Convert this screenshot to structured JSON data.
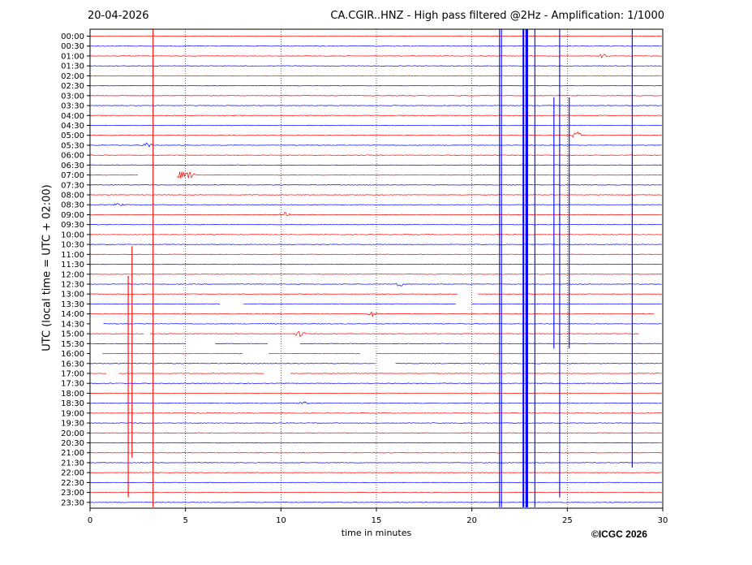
{
  "header": {
    "date": "20-04-2026",
    "title": "CA.CGIR..HNZ - High pass filtered @2Hz - Amplification: 1/1000"
  },
  "footer": {
    "copyright": "©ICGC 2026"
  },
  "chart_data": {
    "type": "line",
    "title": "CA.CGIR..HNZ - High pass filtered @2Hz - Amplification: 1/1000",
    "xlabel": "time in minutes",
    "ylabel": "UTC (local time = UTC + 02:00)",
    "xlim": [
      0,
      30
    ],
    "x_ticks": [
      0,
      5,
      10,
      15,
      20,
      25,
      30
    ],
    "grid": "vertical dotted",
    "trace_colors": [
      "#ff0000",
      "#0000ff"
    ],
    "rows": [
      "00:00",
      "00:30",
      "01:00",
      "01:30",
      "02:00",
      "02:30",
      "03:00",
      "03:30",
      "04:00",
      "04:30",
      "05:00",
      "05:30",
      "06:00",
      "06:30",
      "07:00",
      "07:30",
      "08:00",
      "08:30",
      "09:00",
      "09:30",
      "10:00",
      "10:30",
      "11:00",
      "11:30",
      "12:00",
      "12:30",
      "13:00",
      "13:30",
      "14:00",
      "14:30",
      "15:00",
      "15:30",
      "16:00",
      "16:30",
      "17:00",
      "17:30",
      "18:00",
      "18:30",
      "19:00",
      "19:30",
      "20:00",
      "20:30",
      "21:00",
      "21:30",
      "22:00",
      "22:30",
      "23:00",
      "23:30"
    ],
    "events": [
      {
        "minute": 3.3,
        "color": "#ff0000",
        "from_row": 0,
        "to_row": 47
      },
      {
        "minute": 21.45,
        "color": "#0000ff",
        "from_row": 0,
        "to_row": 47
      },
      {
        "minute": 21.55,
        "color": "#0000ff",
        "from_row": 0,
        "to_row": 47
      },
      {
        "minute": 22.7,
        "color": "#0000ff",
        "from_row": 0,
        "to_row": 47
      },
      {
        "minute": 22.85,
        "color": "#0000ff",
        "from_row": 0,
        "to_row": 47
      },
      {
        "minute": 22.9,
        "color": "#0000ff",
        "from_row": 0,
        "to_row": 47
      },
      {
        "minute": 23.3,
        "color": "#0000ff",
        "from_row": 0,
        "to_row": 47
      },
      {
        "minute": 24.6,
        "color": "#0000ff",
        "from_row": 0,
        "to_row": 46
      },
      {
        "minute": 28.4,
        "color": "#0000ff",
        "from_row": 0,
        "to_row": 43
      },
      {
        "minute": 24.3,
        "color": "#0000ff",
        "from_row": 7,
        "to_row": 31
      },
      {
        "minute": 25.1,
        "color": "#0000ff",
        "from_row": 7,
        "to_row": 31
      },
      {
        "minute": 2.0,
        "color": "#ff0000",
        "from_row": 25,
        "to_row": 46
      },
      {
        "minute": 2.2,
        "color": "#ff0000",
        "from_row": 22,
        "to_row": 42
      }
    ],
    "bursts": [
      {
        "row": 2,
        "minute": 26.9,
        "amp": 3
      },
      {
        "row": 10,
        "minute": 25.5,
        "amp": 5
      },
      {
        "row": 11,
        "minute": 3.0,
        "amp": 3
      },
      {
        "row": 14,
        "minute": 4.7,
        "amp": 6
      },
      {
        "row": 14,
        "minute": 5.2,
        "amp": 5
      },
      {
        "row": 17,
        "minute": 1.5,
        "amp": 2
      },
      {
        "row": 18,
        "minute": 10.2,
        "amp": 3
      },
      {
        "row": 25,
        "minute": 16.2,
        "amp": 3
      },
      {
        "row": 28,
        "minute": 14.8,
        "amp": 4
      },
      {
        "row": 30,
        "minute": 11.0,
        "amp": 4
      },
      {
        "row": 37,
        "minute": 11.2,
        "amp": 2
      }
    ],
    "gaps": [
      {
        "row": 14,
        "from": 2.5,
        "to": 4.5
      },
      {
        "row": 26,
        "from": 19.3,
        "to": 20.3
      },
      {
        "row": 27,
        "from": 6.8,
        "to": 8.0
      },
      {
        "row": 27,
        "from": 19.2,
        "to": 20.0
      },
      {
        "row": 28,
        "from": 29.6,
        "to": 30
      },
      {
        "row": 29,
        "from": 0,
        "to": 0.7
      },
      {
        "row": 30,
        "from": 2.8,
        "to": 3.1
      },
      {
        "row": 30,
        "from": 28.8,
        "to": 30
      },
      {
        "row": 31,
        "from": 5.0,
        "to": 6.5
      },
      {
        "row": 31,
        "from": 9.3,
        "to": 11.0
      },
      {
        "row": 32,
        "from": 0,
        "to": 0.6
      },
      {
        "row": 32,
        "from": 8.0,
        "to": 9.3
      },
      {
        "row": 32,
        "from": 14.2,
        "to": 15.0
      },
      {
        "row": 33,
        "from": 15.0,
        "to": 16.0
      },
      {
        "row": 34,
        "from": 0.9,
        "to": 1.5
      },
      {
        "row": 34,
        "from": 9.1,
        "to": 10.5
      }
    ]
  }
}
